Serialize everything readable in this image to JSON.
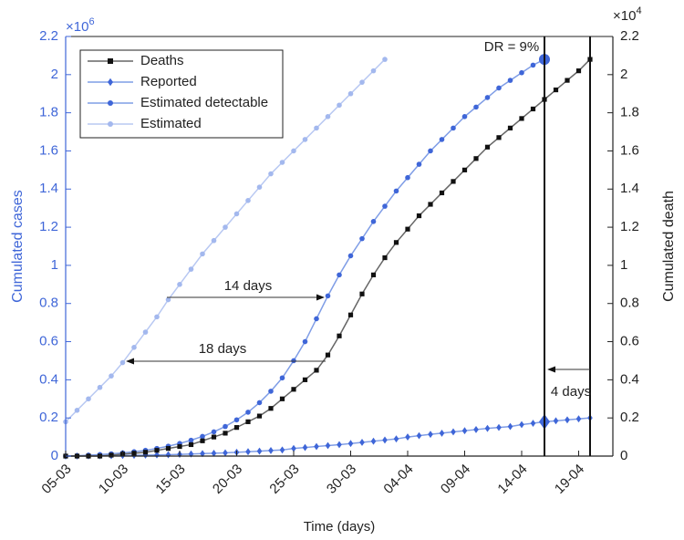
{
  "chart_data": {
    "type": "line",
    "xlabel": "Time (days)",
    "ylabel": "Cumulated cases",
    "y2label": "Cumulated death",
    "y_exponent": {
      "base": "×10",
      "power": "6"
    },
    "y2_exponent": {
      "base": "×10",
      "power": "4"
    },
    "categories": [
      "05-03",
      null,
      null,
      null,
      null,
      "10-03",
      null,
      null,
      null,
      null,
      "15-03",
      null,
      null,
      null,
      null,
      "20-03",
      null,
      null,
      null,
      null,
      "25-03",
      null,
      null,
      null,
      null,
      "30-03",
      null,
      null,
      null,
      null,
      "04-04",
      null,
      null,
      null,
      null,
      "09-04",
      null,
      null,
      null,
      null,
      "14-04",
      null,
      null,
      null,
      null,
      "19-04",
      null,
      null,
      null
    ],
    "ylim": [
      0,
      2.2
    ],
    "yticks": [
      0,
      0.2,
      0.4,
      0.6,
      0.8,
      1,
      1.2,
      1.4,
      1.6,
      1.8,
      2,
      2.2
    ],
    "y2lim": [
      0,
      2.2
    ],
    "y2ticks": [
      0,
      0.2,
      0.4,
      0.6,
      0.8,
      1,
      1.2,
      1.4,
      1.6,
      1.8,
      2,
      2.2
    ],
    "legend": "upper left",
    "annotations": [
      "DR = 9%",
      "14 days",
      "18 days",
      "4 days"
    ],
    "series": [
      {
        "name": "Deaths",
        "color": "#111111",
        "line_color": "#666666",
        "marker": "square",
        "axis": "y2",
        "values": [
          0,
          0,
          0,
          0,
          0.005,
          0.01,
          0.015,
          0.02,
          0.03,
          0.04,
          0.05,
          0.06,
          0.08,
          0.1,
          0.12,
          0.15,
          0.18,
          0.21,
          0.25,
          0.3,
          0.35,
          0.4,
          0.45,
          0.53,
          0.63,
          0.74,
          0.85,
          0.95,
          1.04,
          1.12,
          1.19,
          1.26,
          1.32,
          1.38,
          1.44,
          1.5,
          1.56,
          1.62,
          1.67,
          1.72,
          1.77,
          1.82,
          1.87,
          1.92,
          1.97,
          2.02,
          2.08,
          null,
          null
        ]
      },
      {
        "name": "Reported",
        "color": "#3f66d8",
        "line_color": "#7f9de6",
        "marker": "diamond",
        "values": [
          0,
          0.0005,
          0.001,
          0.0015,
          0.002,
          0.003,
          0.004,
          0.005,
          0.006,
          0.007,
          0.009,
          0.011,
          0.013,
          0.015,
          0.017,
          0.02,
          0.023,
          0.026,
          0.029,
          0.032,
          0.04,
          0.045,
          0.05,
          0.055,
          0.06,
          0.066,
          0.072,
          0.078,
          0.084,
          0.09,
          0.1,
          0.107,
          0.114,
          0.12,
          0.127,
          0.133,
          0.139,
          0.145,
          0.15,
          0.155,
          0.165,
          0.172,
          0.18,
          0.185,
          0.19,
          0.195,
          0.2,
          null,
          null
        ]
      },
      {
        "name": "Estimated detectable",
        "color": "#3f66d8",
        "line_color": "#7f9de6",
        "marker": "circle",
        "values": [
          0,
          0.002,
          0.005,
          0.008,
          0.012,
          0.017,
          0.023,
          0.03,
          0.04,
          0.052,
          0.066,
          0.083,
          0.103,
          0.127,
          0.155,
          0.19,
          0.23,
          0.28,
          0.34,
          0.41,
          0.5,
          0.6,
          0.72,
          0.84,
          0.95,
          1.05,
          1.14,
          1.23,
          1.31,
          1.39,
          1.46,
          1.53,
          1.6,
          1.66,
          1.72,
          1.78,
          1.83,
          1.88,
          1.93,
          1.97,
          2.01,
          2.05,
          2.08,
          null,
          null,
          null,
          null,
          null,
          null
        ]
      },
      {
        "name": "Estimated",
        "color": "#a3b8ee",
        "line_color": "#b8c8f2",
        "marker": "circle",
        "values": [
          0.18,
          0.24,
          0.3,
          0.36,
          0.42,
          0.49,
          0.57,
          0.65,
          0.73,
          0.82,
          0.9,
          0.98,
          1.06,
          1.13,
          1.2,
          1.27,
          1.34,
          1.41,
          1.48,
          1.54,
          1.6,
          1.66,
          1.72,
          1.78,
          1.84,
          1.9,
          1.96,
          2.02,
          2.08,
          null,
          null,
          null,
          null,
          null,
          null,
          null,
          null,
          null,
          null,
          null,
          null,
          null,
          null,
          null,
          null,
          null,
          null,
          null,
          null
        ]
      }
    ]
  }
}
